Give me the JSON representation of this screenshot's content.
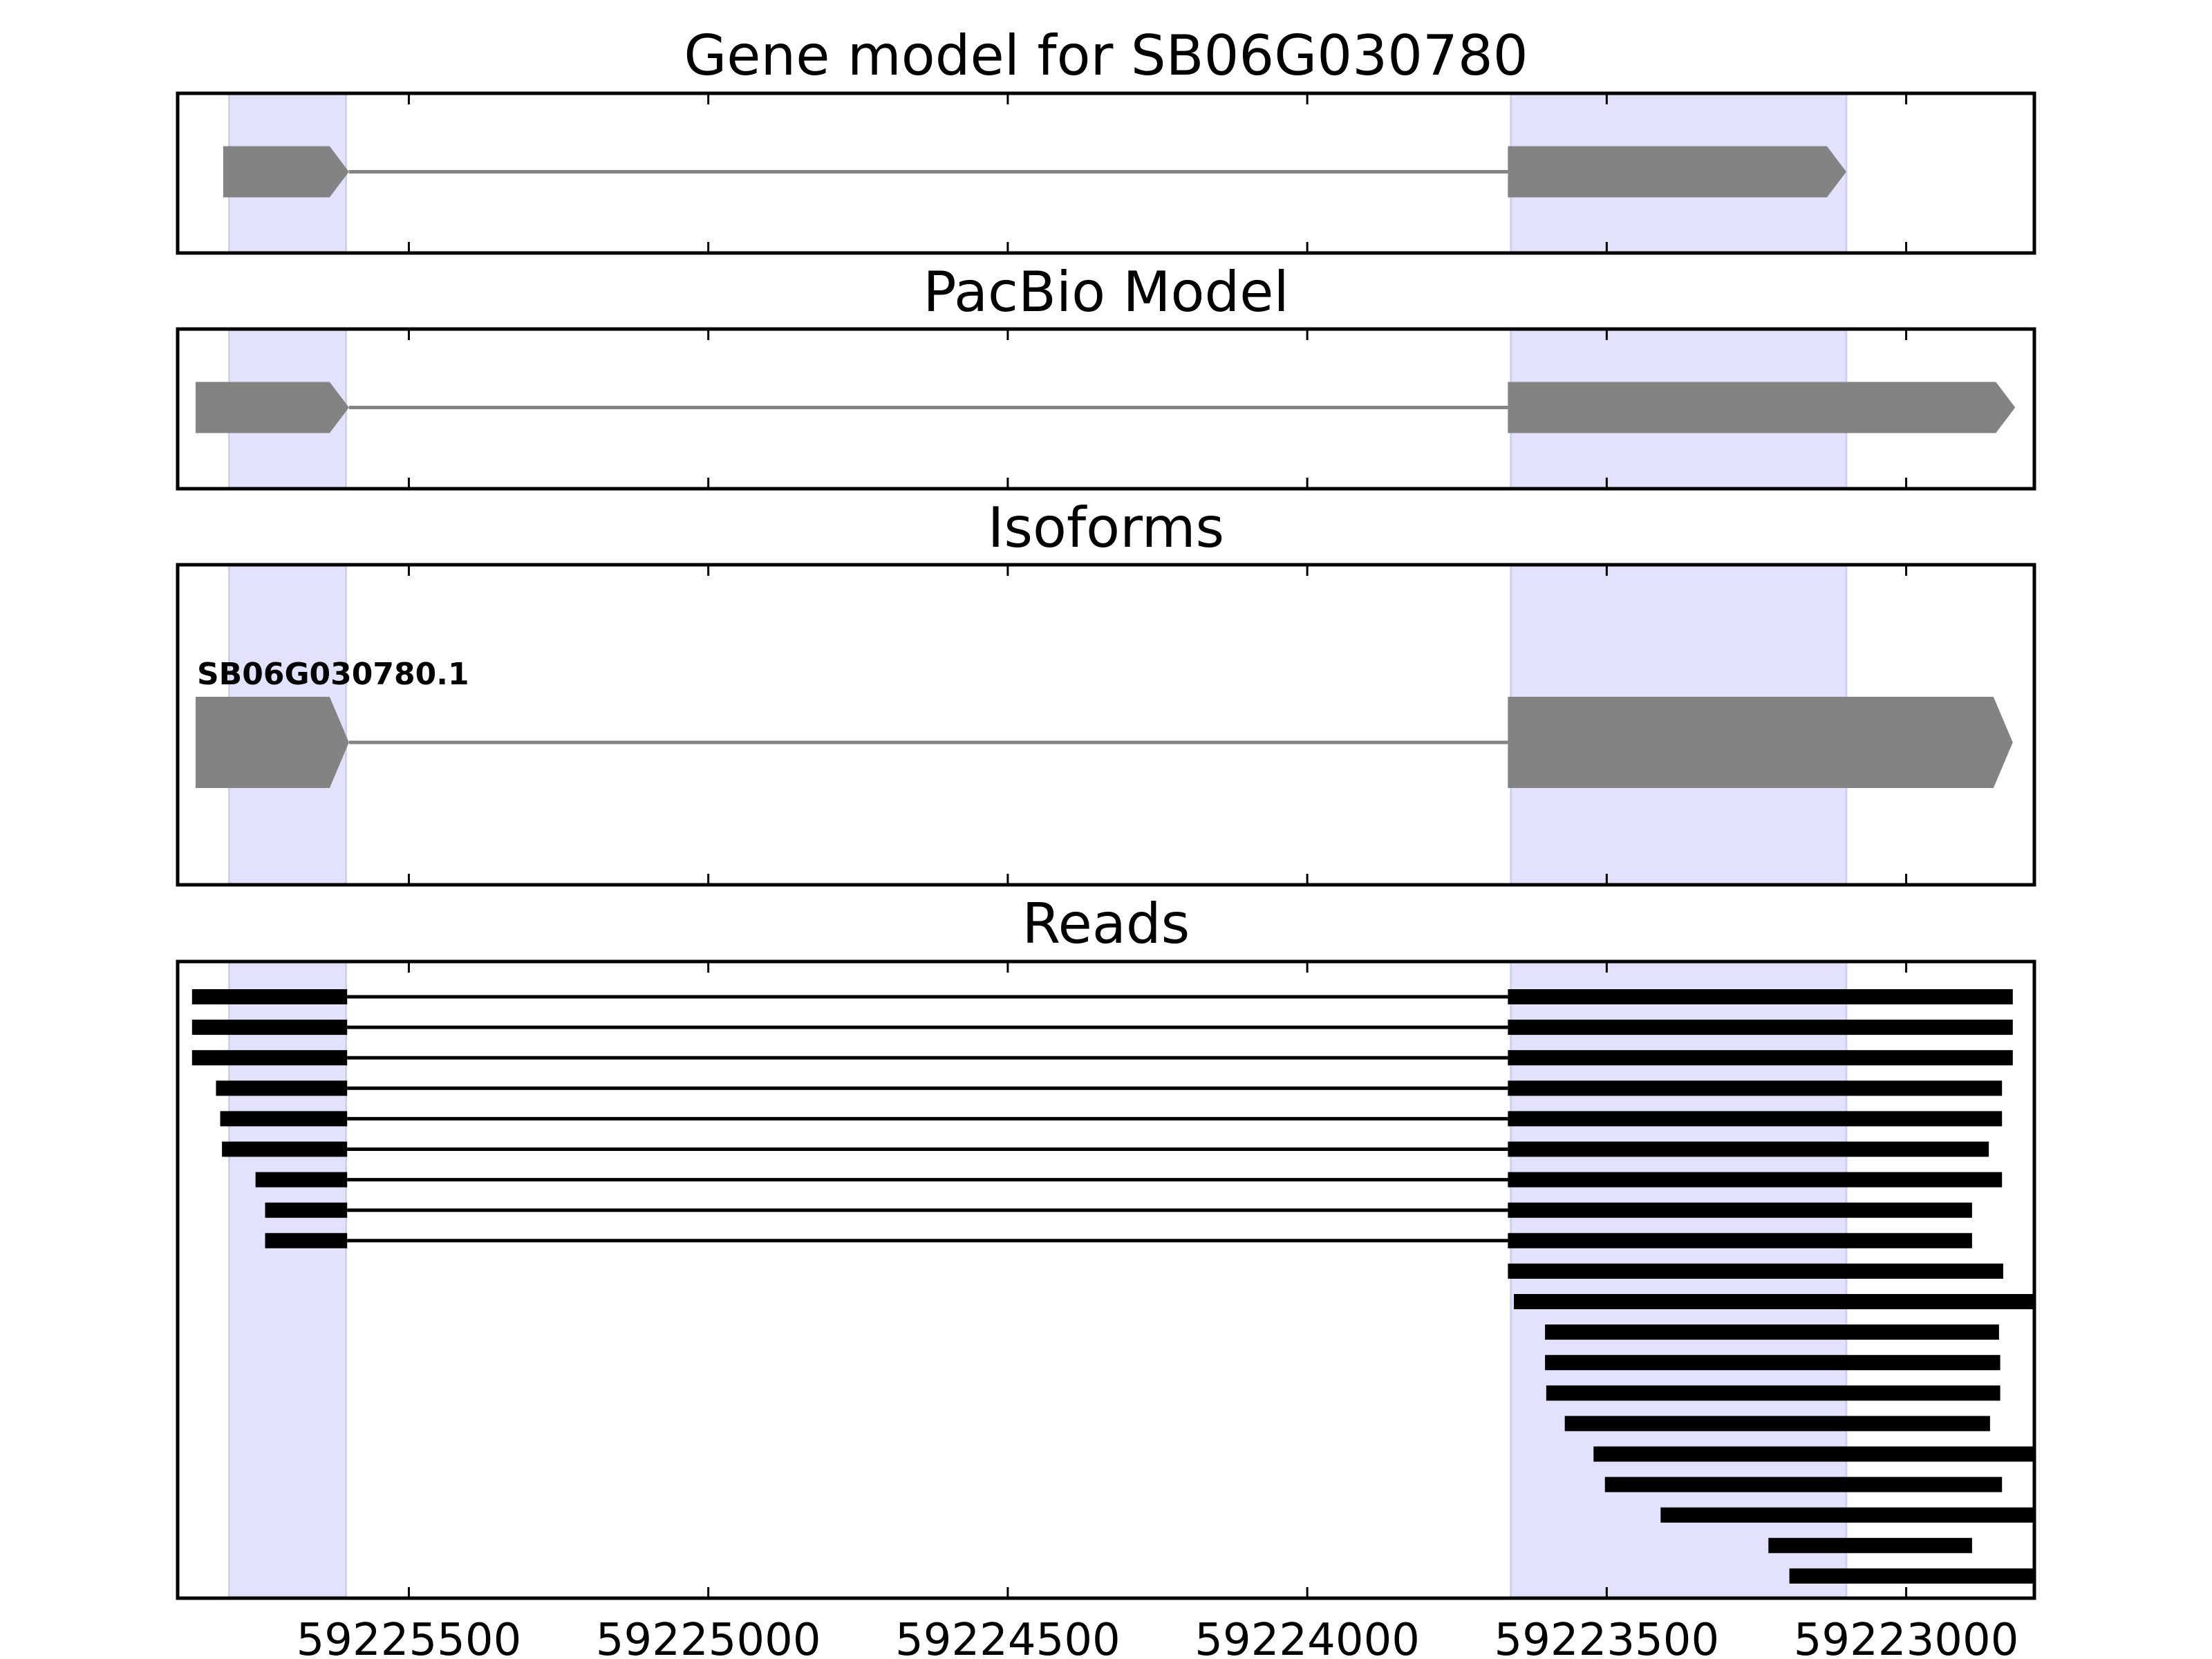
{
  "chart_data": {
    "type": "gene-structure",
    "x_axis": {
      "reversed": true,
      "range": [
        59225886,
        59222786
      ],
      "ticks": [
        59225500,
        59225000,
        59224500,
        59224000,
        59223500,
        59223000
      ],
      "tick_labels": [
        "59225500",
        "59225000",
        "59224500",
        "59224000",
        "59223500",
        "59223000"
      ]
    },
    "highlight_regions": [
      [
        59225800,
        59225605
      ],
      [
        59223660,
        59223100
      ]
    ],
    "colors": {
      "highlight": "#e2e2fc",
      "feature": "#838383",
      "intron": "#838383",
      "read": "#000000",
      "frame": "#000000"
    },
    "panels": [
      {
        "id": "gene-model",
        "title": "Gene model for SB06G030780",
        "tracks": [
          {
            "exons": [
              [
                59225810,
                59225600
              ],
              [
                59223665,
                59223100
              ]
            ],
            "arrow": "right"
          }
        ]
      },
      {
        "id": "pacbio-model",
        "title": "PacBio Model",
        "tracks": [
          {
            "exons": [
              [
                59225856,
                59225600
              ],
              [
                59223665,
                59222818
              ]
            ],
            "arrow": "right"
          }
        ]
      },
      {
        "id": "isoforms",
        "title": "Isoforms",
        "tracks": [
          {
            "label": "SB06G030780.1",
            "exons": [
              [
                59225856,
                59225600
              ],
              [
                59223665,
                59222822
              ]
            ],
            "arrow": "right"
          }
        ]
      },
      {
        "id": "reads",
        "title": "Reads",
        "reads": [
          {
            "blocks": [
              [
                59225862,
                59225603
              ],
              [
                59223665,
                59222822
              ]
            ]
          },
          {
            "blocks": [
              [
                59225862,
                59225603
              ],
              [
                59223665,
                59222822
              ]
            ]
          },
          {
            "blocks": [
              [
                59225862,
                59225603
              ],
              [
                59223665,
                59222822
              ]
            ]
          },
          {
            "blocks": [
              [
                59225822,
                59225603
              ],
              [
                59223665,
                59222840
              ]
            ]
          },
          {
            "blocks": [
              [
                59225815,
                59225603
              ],
              [
                59223665,
                59222840
              ]
            ]
          },
          {
            "blocks": [
              [
                59225812,
                59225603
              ],
              [
                59223665,
                59222862
              ]
            ]
          },
          {
            "blocks": [
              [
                59225756,
                59225603
              ],
              [
                59223665,
                59222840
              ]
            ]
          },
          {
            "blocks": [
              [
                59225740,
                59225603
              ],
              [
                59223665,
                59222890
              ]
            ]
          },
          {
            "blocks": [
              [
                59225740,
                59225603
              ],
              [
                59223665,
                59222890
              ]
            ]
          },
          {
            "blocks": [
              [
                59223665,
                59222838
              ]
            ]
          },
          {
            "blocks": [
              [
                59223655,
                59222786
              ]
            ]
          },
          {
            "blocks": [
              [
                59223603,
                59222845
              ]
            ]
          },
          {
            "blocks": [
              [
                59223603,
                59222843
              ]
            ]
          },
          {
            "blocks": [
              [
                59223601,
                59222843
              ]
            ]
          },
          {
            "blocks": [
              [
                59223570,
                59222860
              ]
            ]
          },
          {
            "blocks": [
              [
                59223522,
                59222786
              ]
            ]
          },
          {
            "blocks": [
              [
                59223503,
                59222840
              ]
            ]
          },
          {
            "blocks": [
              [
                59223410,
                59222786
              ]
            ]
          },
          {
            "blocks": [
              [
                59223230,
                59222890
              ]
            ]
          },
          {
            "blocks": [
              [
                59223195,
                59222786
              ]
            ]
          }
        ]
      }
    ]
  }
}
